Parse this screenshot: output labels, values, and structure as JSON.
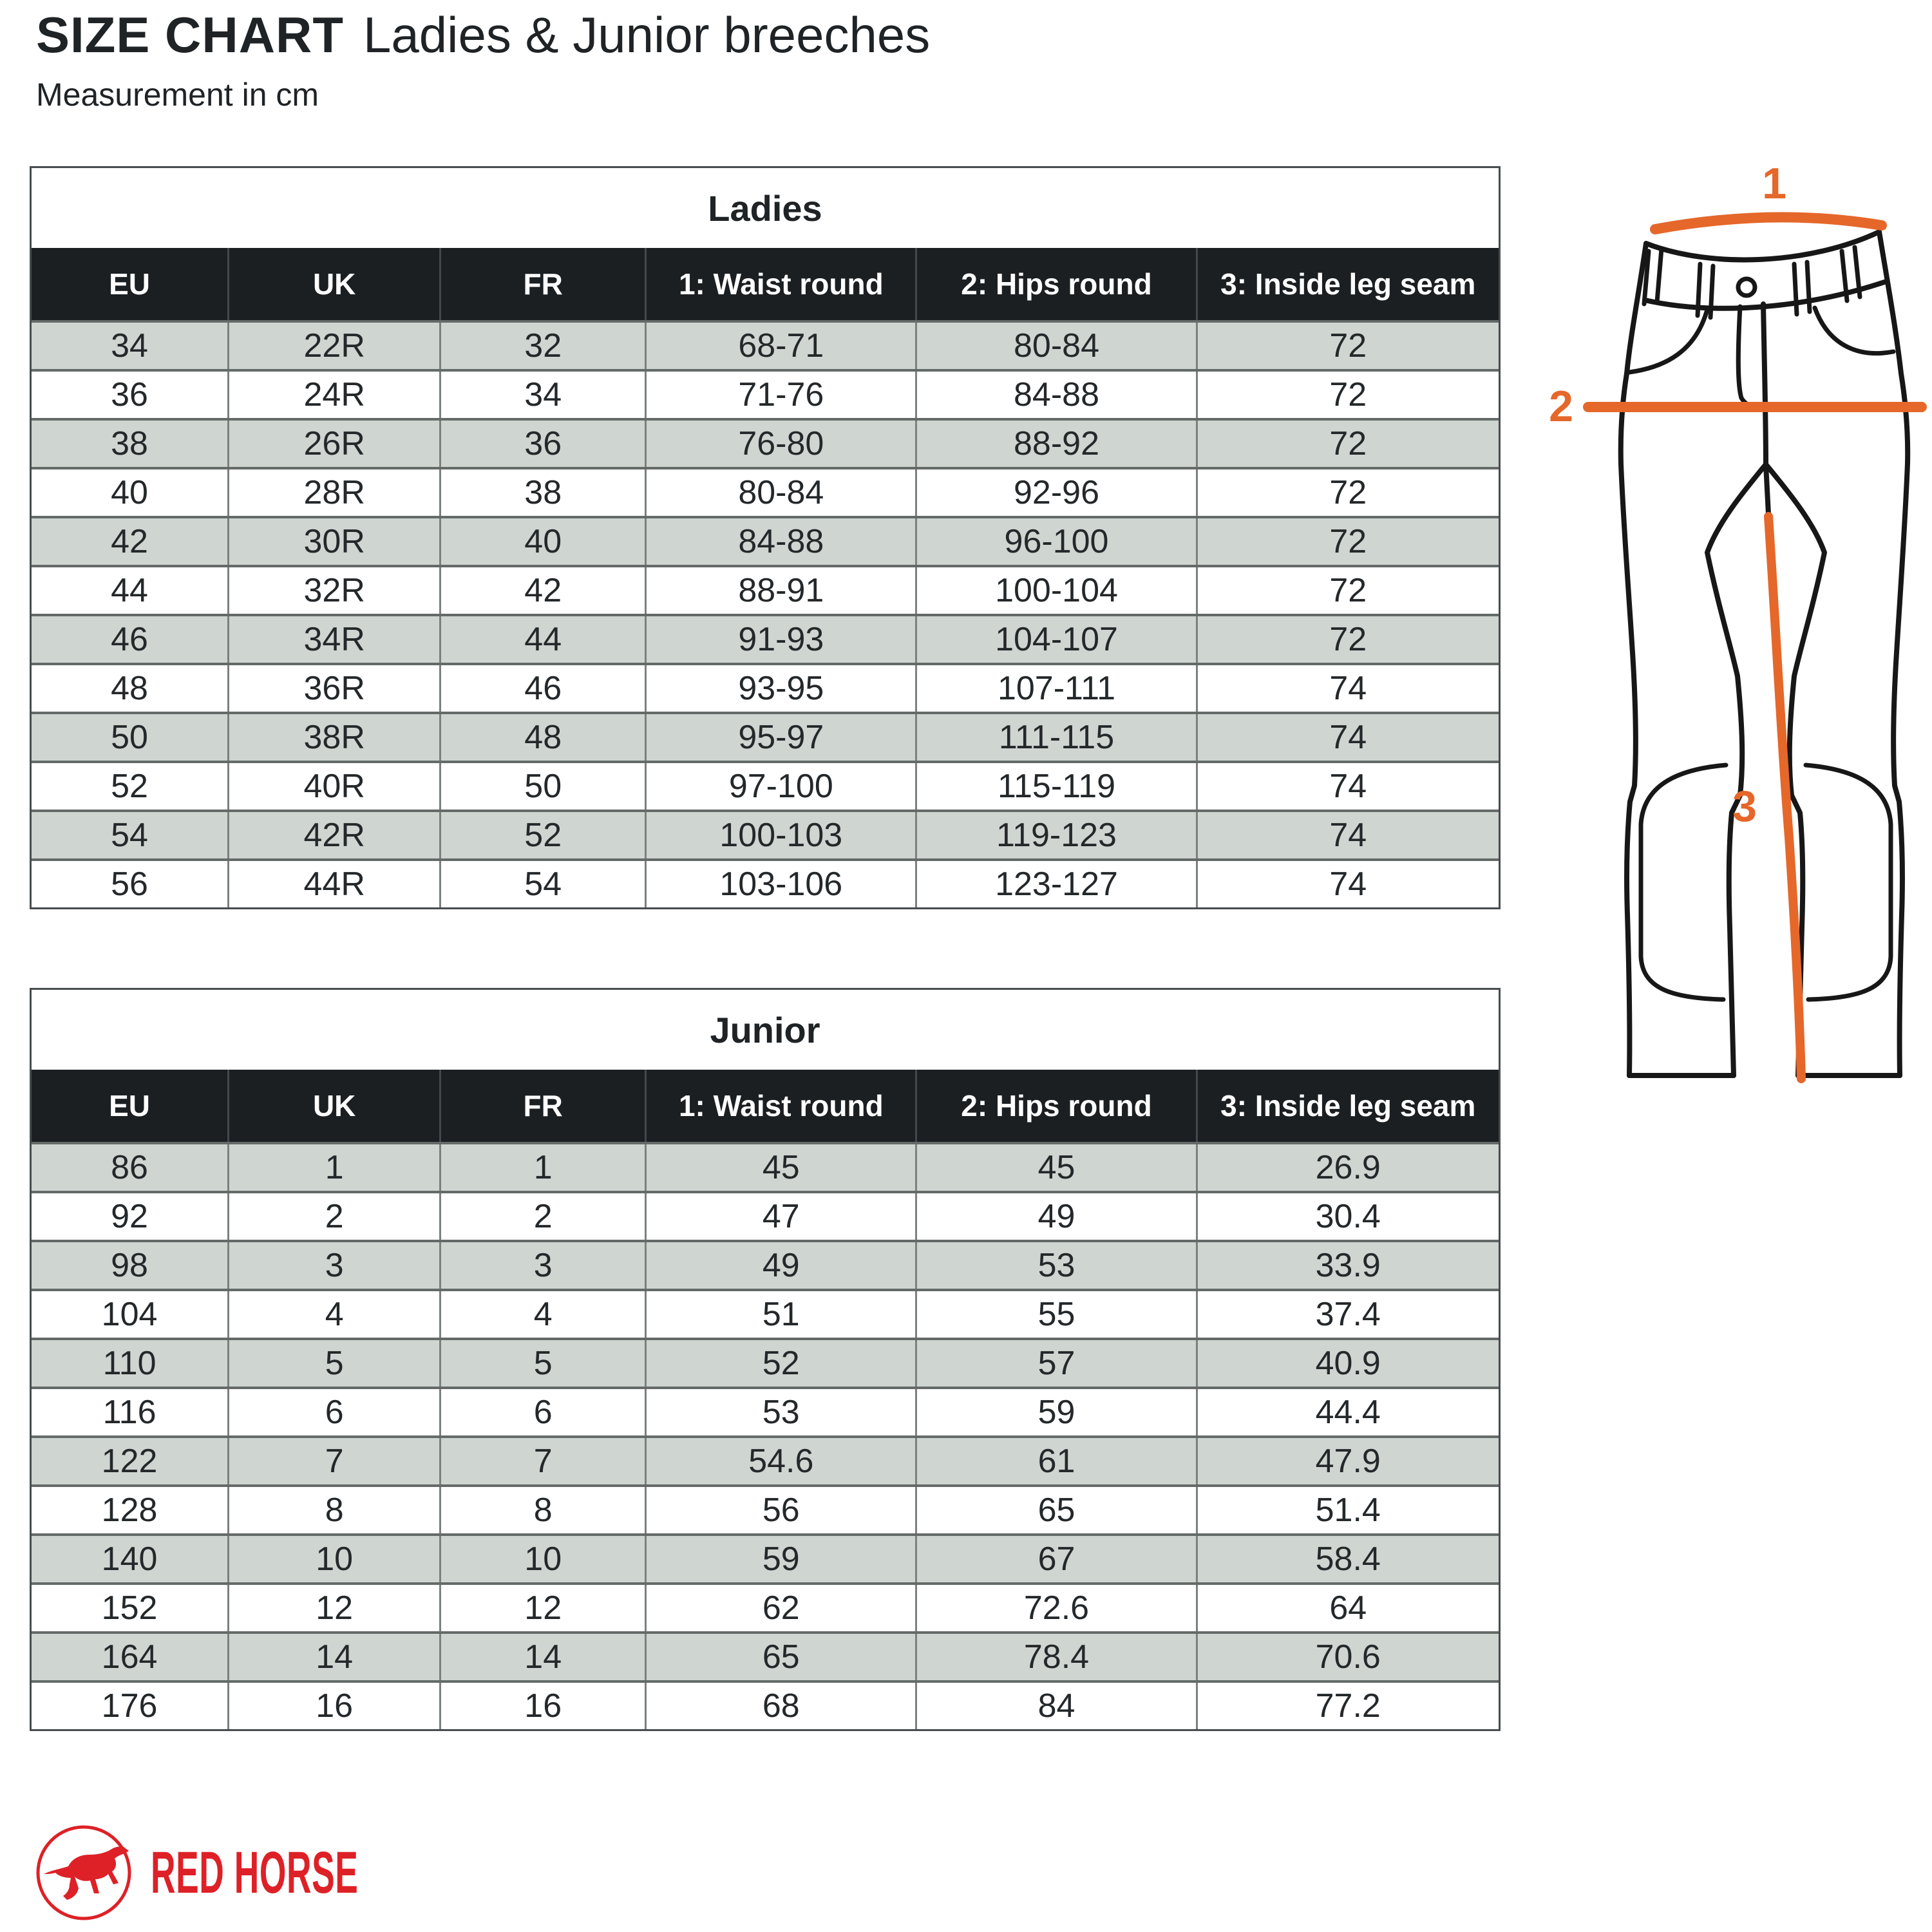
{
  "header": {
    "title_primary": "SIZE CHART",
    "title_secondary": "Ladies & Junior breeches",
    "subtitle": "Measurement in cm"
  },
  "columns": [
    "EU",
    "UK",
    "FR",
    "1: Waist round",
    "2: Hips round",
    "3: Inside leg seam"
  ],
  "tables": [
    {
      "title": "Ladies",
      "rows": [
        [
          "34",
          "22R",
          "32",
          "68-71",
          "80-84",
          "72"
        ],
        [
          "36",
          "24R",
          "34",
          "71-76",
          "84-88",
          "72"
        ],
        [
          "38",
          "26R",
          "36",
          "76-80",
          "88-92",
          "72"
        ],
        [
          "40",
          "28R",
          "38",
          "80-84",
          "92-96",
          "72"
        ],
        [
          "42",
          "30R",
          "40",
          "84-88",
          "96-100",
          "72"
        ],
        [
          "44",
          "32R",
          "42",
          "88-91",
          "100-104",
          "72"
        ],
        [
          "46",
          "34R",
          "44",
          "91-93",
          "104-107",
          "72"
        ],
        [
          "48",
          "36R",
          "46",
          "93-95",
          "107-111",
          "74"
        ],
        [
          "50",
          "38R",
          "48",
          "95-97",
          "111-115",
          "74"
        ],
        [
          "52",
          "40R",
          "50",
          "97-100",
          "115-119",
          "74"
        ],
        [
          "54",
          "42R",
          "52",
          "100-103",
          "119-123",
          "74"
        ],
        [
          "56",
          "44R",
          "54",
          "103-106",
          "123-127",
          "74"
        ]
      ]
    },
    {
      "title": "Junior",
      "rows": [
        [
          "86",
          "1",
          "1",
          "45",
          "45",
          "26.9"
        ],
        [
          "92",
          "2",
          "2",
          "47",
          "49",
          "30.4"
        ],
        [
          "98",
          "3",
          "3",
          "49",
          "53",
          "33.9"
        ],
        [
          "104",
          "4",
          "4",
          "51",
          "55",
          "37.4"
        ],
        [
          "110",
          "5",
          "5",
          "52",
          "57",
          "40.9"
        ],
        [
          "116",
          "6",
          "6",
          "53",
          "59",
          "44.4"
        ],
        [
          "122",
          "7",
          "7",
          "54.6",
          "61",
          "47.9"
        ],
        [
          "128",
          "8",
          "8",
          "56",
          "65",
          "51.4"
        ],
        [
          "140",
          "10",
          "10",
          "59",
          "67",
          "58.4"
        ],
        [
          "152",
          "12",
          "12",
          "62",
          "72.6",
          "64"
        ],
        [
          "164",
          "14",
          "14",
          "65",
          "78.4",
          "70.6"
        ],
        [
          "176",
          "16",
          "16",
          "68",
          "84",
          "77.2"
        ]
      ]
    }
  ],
  "diagram": {
    "label_waist": "1",
    "label_hips": "2",
    "label_inseam": "3"
  },
  "logo": {
    "brand": "RED HORSE"
  },
  "colors": {
    "accent_orange": "#e5672a",
    "logo_red": "#dd2127",
    "header_bg": "#1b1f22",
    "row_shaded": "#cfd5d1"
  }
}
